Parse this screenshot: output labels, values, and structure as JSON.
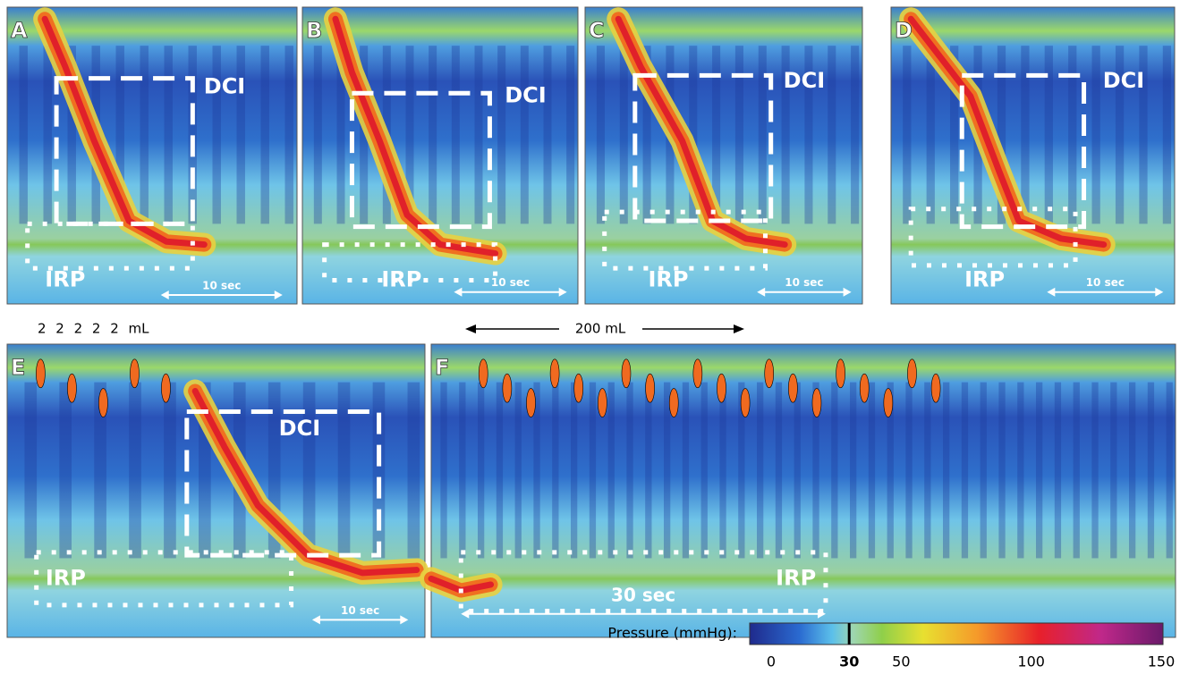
{
  "panels": [
    {
      "label": "A",
      "dci": "DCI",
      "irp": "IRP",
      "scale": "10 sec"
    },
    {
      "label": "B",
      "dci": "DCI",
      "irp": "IRP",
      "scale": "10 sec"
    },
    {
      "label": "C",
      "dci": "DCI",
      "irp": "IRP",
      "scale": "10 sec"
    },
    {
      "label": "D",
      "dci": "DCI",
      "irp": "IRP",
      "scale": "10 sec"
    },
    {
      "label": "E",
      "dci": "DCI",
      "irp": "IRP",
      "scale": "10 sec"
    },
    {
      "label": "F",
      "irp": "IRP",
      "scale": "30 sec"
    }
  ],
  "volume_labels": {
    "swallows": "2 2 2 2 2 mL",
    "bolus": "200 mL"
  },
  "colorbar": {
    "title": "Pressure (mmHg):",
    "ticks": [
      0,
      30,
      50,
      100,
      150
    ],
    "highlight": 30
  }
}
